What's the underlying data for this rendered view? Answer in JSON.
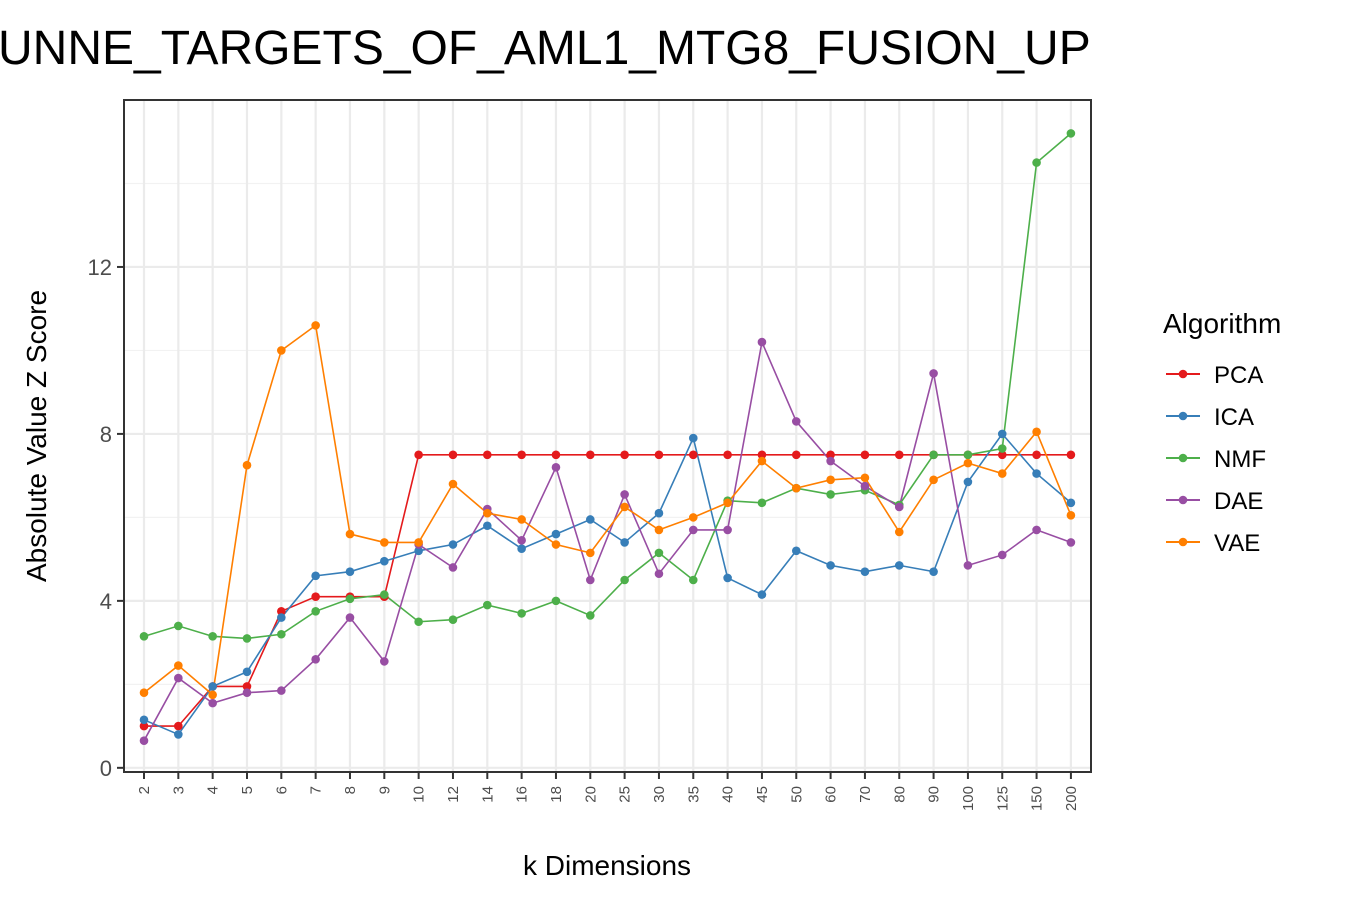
{
  "chart_data": {
    "type": "line",
    "title": "UNNE_TARGETS_OF_AML1_MTG8_FUSION_UP",
    "xlabel": "k Dimensions",
    "ylabel": "Absolute Value Z Score",
    "categories": [
      "2",
      "3",
      "4",
      "5",
      "6",
      "7",
      "8",
      "9",
      "10",
      "12",
      "14",
      "16",
      "18",
      "20",
      "25",
      "30",
      "35",
      "40",
      "45",
      "50",
      "60",
      "70",
      "80",
      "90",
      "100",
      "125",
      "150",
      "200"
    ],
    "yticks": [
      0,
      4,
      8,
      12
    ],
    "ylim": [
      -0.1,
      16
    ],
    "grid": true,
    "legend": {
      "title": "Algorithm",
      "position": "right"
    },
    "series": [
      {
        "name": "PCA",
        "color": "#e41a1c",
        "values": [
          1.0,
          1.0,
          1.95,
          1.95,
          3.75,
          4.1,
          4.1,
          4.1,
          7.5,
          7.5,
          7.5,
          7.5,
          7.5,
          7.5,
          7.5,
          7.5,
          7.5,
          7.5,
          7.5,
          7.5,
          7.5,
          7.5,
          7.5,
          7.5,
          7.5,
          7.5,
          7.5,
          7.5
        ]
      },
      {
        "name": "ICA",
        "color": "#377eb8",
        "values": [
          1.15,
          0.8,
          1.95,
          2.3,
          3.6,
          4.6,
          4.7,
          4.95,
          5.2,
          5.35,
          5.8,
          5.25,
          5.6,
          5.95,
          5.4,
          6.1,
          7.9,
          4.55,
          4.15,
          5.2,
          4.85,
          4.7,
          4.85,
          4.7,
          6.85,
          8.0,
          7.05,
          6.35
        ]
      },
      {
        "name": "NMF",
        "color": "#4daf4a",
        "values": [
          3.15,
          3.4,
          3.15,
          3.1,
          3.2,
          3.75,
          4.05,
          4.15,
          3.5,
          3.55,
          3.9,
          3.7,
          4.0,
          3.65,
          4.5,
          5.15,
          4.5,
          6.4,
          6.35,
          6.7,
          6.55,
          6.65,
          6.3,
          7.5,
          7.5,
          7.65,
          14.5,
          15.2
        ]
      },
      {
        "name": "DAE",
        "color": "#984ea3",
        "values": [
          0.65,
          2.15,
          1.55,
          1.8,
          1.85,
          2.6,
          3.6,
          2.55,
          5.35,
          4.8,
          6.2,
          5.45,
          7.2,
          4.5,
          6.55,
          4.65,
          5.7,
          5.7,
          10.2,
          8.3,
          7.35,
          6.75,
          6.25,
          9.45,
          4.85,
          5.1,
          5.7,
          5.4
        ]
      },
      {
        "name": "VAE",
        "color": "#ff7f00",
        "values": [
          1.8,
          2.45,
          1.75,
          7.25,
          10.0,
          10.6,
          5.6,
          5.4,
          5.4,
          6.8,
          6.1,
          5.95,
          5.35,
          5.15,
          6.25,
          5.7,
          6.0,
          6.35,
          7.35,
          6.7,
          6.9,
          6.95,
          5.65,
          6.9,
          7.3,
          7.05,
          8.05,
          6.05
        ]
      }
    ]
  }
}
